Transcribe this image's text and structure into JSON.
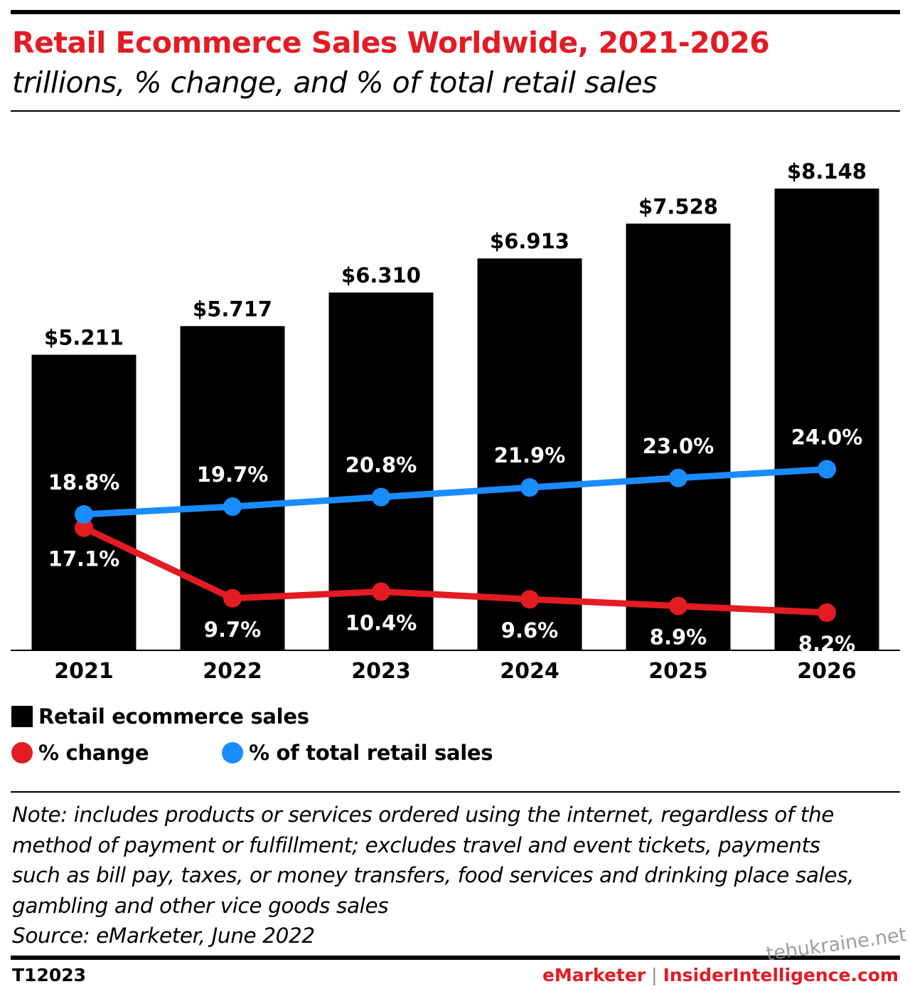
{
  "header": {
    "title": "Retail Ecommerce Sales Worldwide, 2021-2026",
    "subtitle": "trillions, % change, and % of total retail sales"
  },
  "chart_data": {
    "type": "bar",
    "categories": [
      "2021",
      "2022",
      "2023",
      "2024",
      "2025",
      "2026"
    ],
    "series": [
      {
        "name": "Retail ecommerce sales",
        "type": "bar",
        "values": [
          5.211,
          5.717,
          6.31,
          6.913,
          7.528,
          8.148
        ],
        "labels": [
          "$5.211",
          "$5.717",
          "$6.310",
          "$6.913",
          "$7.528",
          "$8.148"
        ],
        "color": "#000000"
      },
      {
        "name": "% change",
        "type": "line",
        "values": [
          17.1,
          9.7,
          10.4,
          9.6,
          8.9,
          8.2
        ],
        "labels": [
          "17.1%",
          "9.7%",
          "10.4%",
          "9.6%",
          "8.9%",
          "8.2%"
        ],
        "color": "#e31b23"
      },
      {
        "name": "% of total retail sales",
        "type": "line",
        "values": [
          18.8,
          19.7,
          20.8,
          21.9,
          23.0,
          24.0
        ],
        "labels": [
          "18.8%",
          "19.7%",
          "20.8%",
          "21.9%",
          "23.0%",
          "24.0%"
        ],
        "color": "#1a8cff"
      }
    ],
    "legend_position": "bottom-left",
    "grid": false
  },
  "legend": {
    "bars": "Retail ecommerce sales",
    "change": "% change",
    "share": "% of total retail sales"
  },
  "note": {
    "lines": [
      "Note: includes products or services ordered using the internet, regardless of the",
      "method of payment or fulfillment; excludes travel and event tickets, payments",
      "such as bill pay, taxes, or money transfers, food services and drinking place sales,",
      "gambling and other vice goods sales",
      "Source: eMarketer, June 2022"
    ]
  },
  "footer": {
    "chart_id": "T12023",
    "brand_emarketer": "eMarketer",
    "brand_separator": "|",
    "brand_insider": "InsiderIntelligence.com",
    "watermark": "tehukraine.net"
  },
  "colors": {
    "accent_red": "#e31b23",
    "accent_blue": "#1a8cff",
    "bar": "#000000"
  }
}
